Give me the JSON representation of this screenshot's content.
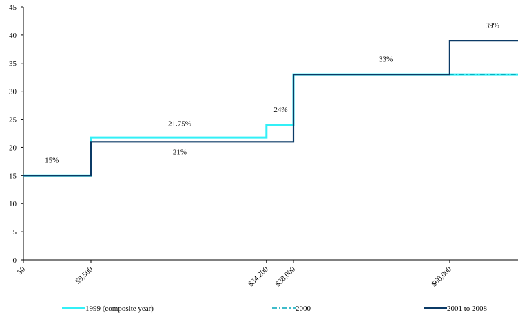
{
  "chart_data": {
    "type": "line",
    "step": true,
    "title": "",
    "xlabel": "",
    "ylabel": "",
    "ylim": [
      0,
      45
    ],
    "yticks": [
      0,
      5,
      10,
      15,
      20,
      25,
      30,
      35,
      40,
      45
    ],
    "xticks": [
      {
        "value": 0,
        "label": "$0"
      },
      {
        "value": 9500,
        "label": "$9,500"
      },
      {
        "value": 34200,
        "label": "$34,200"
      },
      {
        "value": 38000,
        "label": "$38,000"
      },
      {
        "value": 60000,
        "label": "$60,000"
      }
    ],
    "grid": false,
    "legend_position": "bottom",
    "series": [
      {
        "name": "1999 (composite year)",
        "color": "#33f0f7",
        "dash": "solid",
        "points": [
          [
            0,
            15
          ],
          [
            9500,
            15
          ],
          [
            9500,
            21.75
          ],
          [
            34200,
            21.75
          ],
          [
            34200,
            24
          ],
          [
            38000,
            24
          ],
          [
            38000,
            33
          ],
          [
            70000,
            33
          ]
        ]
      },
      {
        "name": "2000",
        "color": "#00a6b8",
        "dash": "dash-dot",
        "points": [
          [
            0,
            15
          ],
          [
            9500,
            15
          ],
          [
            9500,
            21
          ],
          [
            38000,
            21
          ],
          [
            38000,
            33
          ],
          [
            70000,
            33
          ]
        ]
      },
      {
        "name": "2001 to 2008",
        "color": "#0b3a66",
        "dash": "solid",
        "points": [
          [
            0,
            15
          ],
          [
            9500,
            15
          ],
          [
            9500,
            21
          ],
          [
            38000,
            21
          ],
          [
            38000,
            33
          ],
          [
            60000,
            33
          ],
          [
            60000,
            39
          ],
          [
            70000,
            39
          ]
        ]
      }
    ],
    "annotations": [
      {
        "text": "15%",
        "x": 4000,
        "y": 17.3
      },
      {
        "text": "21.75%",
        "x": 22000,
        "y": 23.8
      },
      {
        "text": "21%",
        "x": 22000,
        "y": 18.8
      },
      {
        "text": "24%",
        "x": 36200,
        "y": 26.3
      },
      {
        "text": "33%",
        "x": 51000,
        "y": 35.3
      },
      {
        "text": "39%",
        "x": 66000,
        "y": 41.3
      }
    ]
  }
}
